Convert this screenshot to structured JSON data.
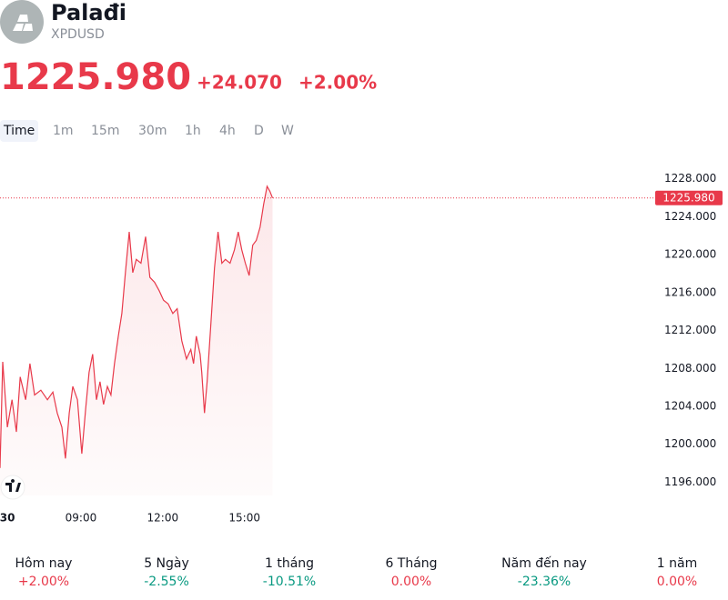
{
  "header": {
    "title": "Palađi",
    "symbol": "XPDUSD",
    "price": "1225.980",
    "change": "+24.070",
    "change_percent": "+2.00%"
  },
  "tabs": [
    "Time",
    "1m",
    "15m",
    "30m",
    "1h",
    "4h",
    "D",
    "W"
  ],
  "chart_data": {
    "type": "area",
    "color": "#e8394a",
    "x": [
      6.03,
      6.13,
      6.3,
      6.47,
      6.63,
      6.77,
      6.97,
      7.13,
      7.3,
      7.53,
      7.77,
      7.97,
      8.13,
      8.3,
      8.43,
      8.57,
      8.7,
      8.87,
      9.03,
      9.17,
      9.3,
      9.43,
      9.57,
      9.7,
      9.83,
      9.97,
      10.1,
      10.23,
      10.37,
      10.5,
      10.63,
      10.77,
      10.9,
      11.03,
      11.2,
      11.37,
      11.53,
      11.7,
      11.87,
      12.03,
      12.2,
      12.37,
      12.53,
      12.7,
      12.87,
      13.03,
      13.13,
      13.23,
      13.37,
      13.43,
      13.53,
      13.63,
      13.77,
      13.9,
      14.03,
      14.17,
      14.3,
      14.47,
      14.63,
      14.77,
      14.9,
      15.03,
      15.17,
      15.3,
      15.43,
      15.57,
      15.7,
      15.83,
      15.93,
      16.03
    ],
    "values": [
      1197.5,
      1208.7,
      1201.8,
      1204.7,
      1201.3,
      1207.1,
      1204.7,
      1208.5,
      1205.2,
      1205.7,
      1204.7,
      1205.5,
      1203.3,
      1201.8,
      1198.5,
      1203.3,
      1206.1,
      1204.7,
      1199.0,
      1203.7,
      1207.6,
      1209.5,
      1204.7,
      1206.6,
      1204.2,
      1206.1,
      1205.2,
      1208.5,
      1211.4,
      1213.8,
      1218.1,
      1222.4,
      1218.1,
      1219.5,
      1219.1,
      1221.9,
      1217.6,
      1217.1,
      1216.2,
      1215.2,
      1214.8,
      1213.8,
      1214.3,
      1210.9,
      1209.0,
      1210.0,
      1208.5,
      1211.4,
      1209.5,
      1207.6,
      1203.3,
      1206.6,
      1212.8,
      1218.6,
      1222.4,
      1219.1,
      1219.5,
      1219.1,
      1220.5,
      1222.4,
      1220.5,
      1219.1,
      1217.8,
      1221.0,
      1221.5,
      1222.9,
      1225.3,
      1227.2,
      1226.7,
      1225.98
    ],
    "last_value": 1225.98,
    "xlim": [
      6.03,
      29.9
    ],
    "xticks": [
      {
        "value": 6.3,
        "label": "30"
      },
      {
        "value": 9,
        "label": "09:00"
      },
      {
        "value": 12,
        "label": "12:00"
      },
      {
        "value": 15,
        "label": "15:00"
      }
    ],
    "ylim": [
      1194.6,
      1229.6
    ],
    "yticks": [
      {
        "value": 1196,
        "label": "1196.000"
      },
      {
        "value": 1200,
        "label": "1200.000"
      },
      {
        "value": 1204,
        "label": "1204.000"
      },
      {
        "value": 1208,
        "label": "1208.000"
      },
      {
        "value": 1212,
        "label": "1212.000"
      },
      {
        "value": 1216,
        "label": "1216.000"
      },
      {
        "value": 1220,
        "label": "1220.000"
      },
      {
        "value": 1224,
        "label": "1224.000"
      },
      {
        "value": 1228,
        "label": "1228.000"
      }
    ]
  },
  "performance": [
    {
      "label": "Hôm nay",
      "value": "+2.00%",
      "color": "#e8394a"
    },
    {
      "label": "5 Ngày",
      "value": "-2.55%",
      "color": "#089981"
    },
    {
      "label": "1 tháng",
      "value": "-10.51%",
      "color": "#089981"
    },
    {
      "label": "6 Tháng",
      "value": "0.00%",
      "color": "#e8394a"
    },
    {
      "label": "Năm đến nay",
      "value": "-23.36%",
      "color": "#089981"
    },
    {
      "label": "1 năm",
      "value": "0.00%",
      "color": "#e8394a"
    }
  ]
}
